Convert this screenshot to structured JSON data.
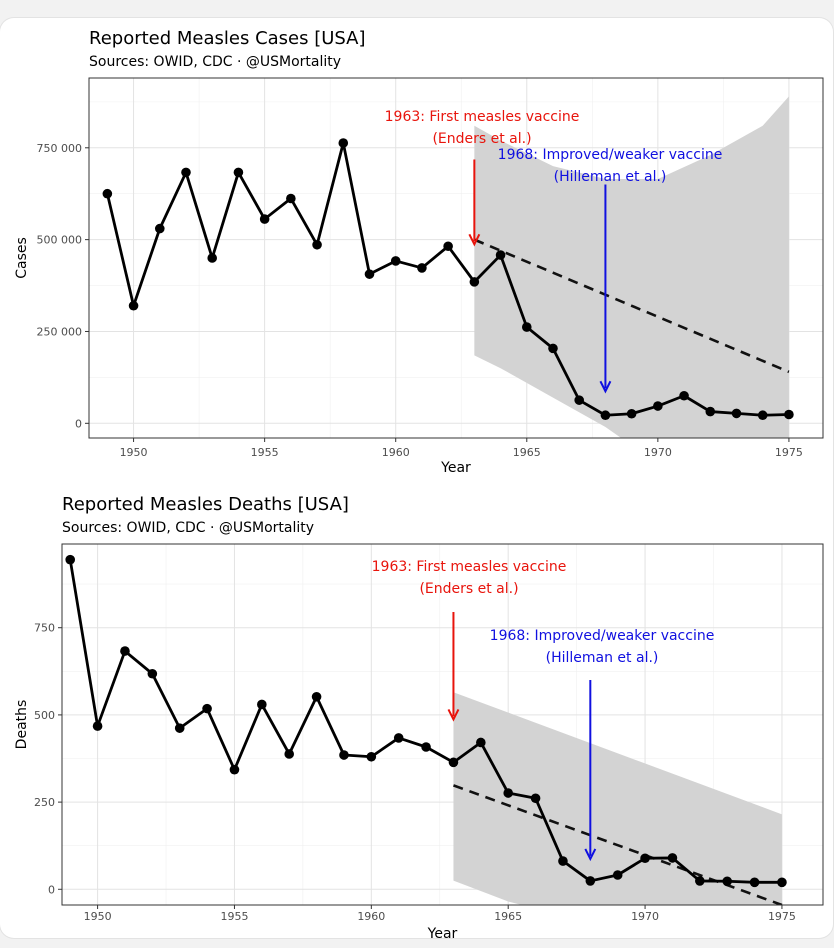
{
  "chart_data": [
    {
      "type": "line",
      "title": "Reported Measles Cases [USA]",
      "subtitle": "Sources: OWID, CDC · @USMortality",
      "xlabel": "Year",
      "ylabel": "Cases",
      "xlim": [
        1948.3,
        1976.3
      ],
      "ylim": [
        -40000,
        940000
      ],
      "x_ticks": [
        1950,
        1955,
        1960,
        1965,
        1970,
        1975
      ],
      "y_ticks": [
        0,
        250000,
        500000,
        750000
      ],
      "y_tick_labels": [
        "0",
        "250 000",
        "500 000",
        "750 000"
      ],
      "grid": true,
      "legend": "none",
      "series": [
        {
          "x": [
            1949,
            1950,
            1951,
            1952,
            1953,
            1954,
            1955,
            1956,
            1957,
            1958,
            1959,
            1960,
            1961,
            1962,
            1963,
            1964,
            1965,
            1966,
            1967,
            1968,
            1969,
            1970,
            1971,
            1972,
            1973,
            1974,
            1975
          ],
          "values": [
            625000,
            320000,
            530000,
            683000,
            450000,
            683000,
            556000,
            612000,
            486000,
            763000,
            406000,
            442000,
            423000,
            482000,
            385000,
            458000,
            262000,
            204000,
            63000,
            22000,
            26000,
            47000,
            75000,
            32000,
            27000,
            22000,
            24000
          ]
        }
      ],
      "trend": {
        "style": "dashed",
        "x": [
          1963,
          1975
        ],
        "values": [
          500000,
          140000
        ],
        "band_upper": [
          810000,
          890000
        ],
        "band_lower": [
          185000,
          -40000
        ],
        "band_upper_x": [
          1963,
          1964,
          1966,
          1968,
          1970,
          1972,
          1974,
          1975
        ],
        "band_upper_values": [
          810000,
          770000,
          700000,
          665000,
          665000,
          730000,
          810000,
          890000
        ],
        "band_lower_x": [
          1963,
          1964,
          1966,
          1968,
          1968.6
        ],
        "band_lower_values": [
          185000,
          150000,
          70000,
          -10000,
          -40000
        ]
      },
      "annotations": [
        {
          "lines": [
            "1963: First measles vaccine",
            "(Enders et al.)"
          ],
          "color": "#e8140c",
          "arrow_x": 1963,
          "arrow_from": 718000,
          "arrow_to": 490000
        },
        {
          "lines": [
            "1968: Improved/weaker vaccine",
            "(Hilleman et al.)"
          ],
          "color": "#1010e0",
          "arrow_x": 1968,
          "arrow_from": 650000,
          "arrow_to": 90000
        }
      ]
    },
    {
      "type": "line",
      "title": "Reported Measles Deaths [USA]",
      "subtitle": "Sources: OWID, CDC · @USMortality",
      "xlabel": "Year",
      "ylabel": "Deaths",
      "xlim": [
        1948.7,
        1976.5
      ],
      "ylim": [
        -45,
        990
      ],
      "x_ticks": [
        1950,
        1955,
        1960,
        1965,
        1970,
        1975
      ],
      "y_ticks": [
        0,
        250,
        500,
        750
      ],
      "y_tick_labels": [
        "0",
        "250",
        "500",
        "750"
      ],
      "grid": true,
      "legend": "none",
      "series": [
        {
          "x": [
            1949,
            1950,
            1951,
            1952,
            1953,
            1954,
            1955,
            1956,
            1957,
            1958,
            1959,
            1960,
            1961,
            1962,
            1963,
            1964,
            1965,
            1966,
            1967,
            1968,
            1969,
            1970,
            1971,
            1972,
            1973,
            1974,
            1975
          ],
          "values": [
            945,
            468,
            683,
            618,
            462,
            518,
            343,
            530,
            388,
            552,
            385,
            380,
            434,
            408,
            364,
            421,
            276,
            261,
            81,
            24,
            41,
            89,
            90,
            24,
            23,
            20,
            20
          ]
        }
      ],
      "trend": {
        "style": "dashed",
        "x": [
          1963,
          1975
        ],
        "values": [
          298,
          -45
        ],
        "band_upper_x": [
          1963,
          1975
        ],
        "band_upper_values": [
          565,
          215
        ],
        "band_lower_x": [
          1963,
          1965,
          1965.5
        ],
        "band_lower_values": [
          25,
          -35,
          -45
        ]
      },
      "annotations": [
        {
          "lines": [
            "1963: First measles vaccine",
            "(Enders et al.)"
          ],
          "color": "#e8140c",
          "arrow_x": 1963,
          "arrow_from": 795,
          "arrow_to": 490
        },
        {
          "lines": [
            "1968: Improved/weaker vaccine",
            "(Hilleman et al.)"
          ],
          "color": "#1010e0",
          "arrow_x": 1968,
          "arrow_from": 600,
          "arrow_to": 90
        }
      ]
    }
  ]
}
